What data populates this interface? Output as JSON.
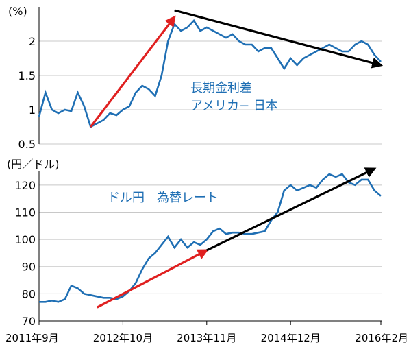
{
  "chart_data": [
    {
      "type": "line",
      "unit": "(%)",
      "annotation": [
        "長期金利差",
        "アメリカ− 日本"
      ],
      "ylim": [
        0.5,
        2.5
      ],
      "y_ticks": [
        "0.5",
        "1",
        "1.5",
        "2"
      ],
      "grid": true,
      "line_color": "#1f6fb4",
      "series": [
        {
          "x": [
            "2011-09",
            "2011-10",
            "2011-11",
            "2011-12",
            "2012-01",
            "2012-02",
            "2012-03",
            "2012-04",
            "2012-05",
            "2012-06",
            "2012-07",
            "2012-08",
            "2012-09",
            "2012-10",
            "2012-11",
            "2012-12",
            "2013-01",
            "2013-02",
            "2013-03",
            "2013-04",
            "2013-05",
            "2013-06",
            "2013-07",
            "2013-08",
            "2013-09",
            "2013-10",
            "2013-11",
            "2013-12",
            "2014-01",
            "2014-02",
            "2014-03",
            "2014-04",
            "2014-05",
            "2014-06",
            "2014-07",
            "2014-08",
            "2014-09",
            "2014-10",
            "2014-11",
            "2014-12",
            "2015-01",
            "2015-02",
            "2015-03",
            "2015-04",
            "2015-05",
            "2015-06",
            "2015-07",
            "2015-08",
            "2015-09",
            "2015-10",
            "2015-11",
            "2015-12",
            "2016-01",
            "2016-02"
          ],
          "values": [
            0.9,
            1.25,
            1.0,
            0.95,
            1.0,
            0.98,
            1.25,
            1.05,
            0.75,
            0.8,
            0.85,
            0.95,
            0.92,
            1.0,
            1.05,
            1.25,
            1.35,
            1.3,
            1.2,
            1.5,
            2.0,
            2.25,
            2.15,
            2.2,
            2.3,
            2.15,
            2.2,
            2.15,
            2.1,
            2.05,
            2.1,
            2.0,
            1.95,
            1.95,
            1.85,
            1.9,
            1.9,
            1.75,
            1.6,
            1.75,
            1.65,
            1.75,
            1.8,
            1.85,
            1.9,
            1.95,
            1.9,
            1.85,
            1.85,
            1.95,
            2.0,
            1.95,
            1.8,
            1.7
          ]
        }
      ],
      "arrows": [
        {
          "color": "#e02020",
          "from": [
            "2012-05",
            0.75
          ],
          "to": [
            "2013-06",
            2.35
          ]
        },
        {
          "color": "#000000",
          "from": [
            "2013-06",
            2.45
          ],
          "to": [
            "2016-02",
            1.65
          ]
        }
      ]
    },
    {
      "type": "line",
      "unit": "(円／ドル)",
      "annotation": [
        "ドル円　為替レート"
      ],
      "ylim": [
        70,
        125
      ],
      "y_ticks": [
        "70",
        "80",
        "90",
        "100",
        "110",
        "120"
      ],
      "grid": true,
      "line_color": "#1f6fb4",
      "x_tick_labels": [
        "2011年9月",
        "2012年10月",
        "2013年11月",
        "2014年12月",
        "2016年2月"
      ],
      "series": [
        {
          "x": [
            "2011-09",
            "2011-10",
            "2011-11",
            "2011-12",
            "2012-01",
            "2012-02",
            "2012-03",
            "2012-04",
            "2012-05",
            "2012-06",
            "2012-07",
            "2012-08",
            "2012-09",
            "2012-10",
            "2012-11",
            "2012-12",
            "2013-01",
            "2013-02",
            "2013-03",
            "2013-04",
            "2013-05",
            "2013-06",
            "2013-07",
            "2013-08",
            "2013-09",
            "2013-10",
            "2013-11",
            "2013-12",
            "2014-01",
            "2014-02",
            "2014-03",
            "2014-04",
            "2014-05",
            "2014-06",
            "2014-07",
            "2014-08",
            "2014-09",
            "2014-10",
            "2014-11",
            "2014-12",
            "2015-01",
            "2015-02",
            "2015-03",
            "2015-04",
            "2015-05",
            "2015-06",
            "2015-07",
            "2015-08",
            "2015-09",
            "2015-10",
            "2015-11",
            "2015-12",
            "2016-01",
            "2016-02"
          ],
          "values": [
            77,
            77,
            77.5,
            77,
            78,
            83,
            82,
            80,
            79.5,
            79,
            78.5,
            78.5,
            78,
            79,
            81,
            84,
            89,
            93,
            95,
            98,
            101,
            97,
            100,
            97,
            99,
            98,
            100,
            103,
            104,
            102,
            102.5,
            102.5,
            102,
            102,
            102.5,
            103,
            107,
            110,
            118,
            120,
            118,
            119,
            120,
            119,
            122,
            124,
            123,
            124,
            121,
            120,
            122,
            122,
            118,
            116
          ]
        }
      ],
      "arrows": [
        {
          "color": "#e02020",
          "from": [
            "2012-06",
            75
          ],
          "to": [
            "2013-11",
            96
          ]
        },
        {
          "color": "#000000",
          "from": [
            "2013-11",
            96
          ],
          "to": [
            "2016-01",
            126
          ]
        }
      ]
    }
  ]
}
